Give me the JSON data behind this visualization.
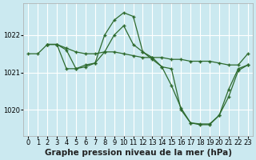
{
  "background_color": "#cbe9f0",
  "grid_color": "#ffffff",
  "line_color": "#2d6a2d",
  "marker": "+",
  "xlabel": "Graphe pression niveau de la mer (hPa)",
  "xlim": [
    -0.5,
    23.5
  ],
  "ylim": [
    1019.3,
    1022.85
  ],
  "yticks": [
    1020,
    1021,
    1022
  ],
  "xticks": [
    0,
    1,
    2,
    3,
    4,
    5,
    6,
    7,
    8,
    9,
    10,
    11,
    12,
    13,
    14,
    15,
    16,
    17,
    18,
    19,
    20,
    21,
    22,
    23
  ],
  "series": [
    {
      "x": [
        0,
        1,
        2,
        3,
        4,
        5,
        6,
        7,
        8,
        9,
        10,
        11,
        12,
        13,
        14,
        15,
        16,
        17,
        18,
        19,
        20,
        21,
        22,
        23
      ],
      "y": [
        1021.5,
        1021.5,
        1021.75,
        1021.75,
        1021.65,
        1021.55,
        1021.5,
        1021.5,
        1021.55,
        1021.55,
        1021.5,
        1021.45,
        1021.4,
        1021.4,
        1021.4,
        1021.35,
        1021.35,
        1021.3,
        1021.3,
        1021.3,
        1021.25,
        1021.2,
        1021.2,
        1021.5
      ]
    },
    {
      "x": [
        2,
        3,
        4,
        5,
        6,
        7,
        8,
        9,
        10,
        11,
        12,
        13,
        14,
        15,
        16,
        17,
        18,
        19,
        20,
        21,
        22,
        23
      ],
      "y": [
        1021.75,
        1021.75,
        1021.6,
        1021.1,
        1021.15,
        1021.25,
        1022.0,
        1022.4,
        1022.6,
        1022.5,
        1021.55,
        1021.35,
        1021.15,
        1020.65,
        1020.05,
        1019.65,
        1019.6,
        1019.6,
        1019.85,
        1020.55,
        1021.1,
        1021.2
      ]
    },
    {
      "x": [
        2,
        3,
        4,
        5,
        6,
        7,
        8,
        9,
        10,
        11,
        12,
        13,
        14,
        15,
        16,
        17,
        18,
        19,
        20,
        21,
        22,
        23
      ],
      "y": [
        1021.75,
        1021.75,
        1021.1,
        1021.1,
        1021.2,
        1021.25,
        1021.55,
        1022.0,
        1022.25,
        1021.75,
        1021.55,
        1021.4,
        1021.15,
        1021.1,
        1020.0,
        1019.65,
        1019.62,
        1019.62,
        1019.85,
        1020.35,
        1021.05,
        1021.2
      ]
    }
  ],
  "tick_fontsize": 6.0,
  "xlabel_fontsize": 7.5
}
